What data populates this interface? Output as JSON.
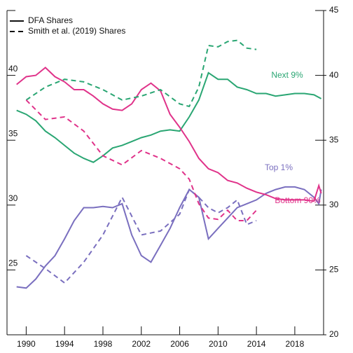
{
  "chart_data": {
    "type": "line",
    "legend": [
      {
        "label": "DFA Shares",
        "dash": "solid"
      },
      {
        "label": "Smith et al. (2019) Shares",
        "dash": "dashed"
      }
    ],
    "xlim": [
      1988,
      2021
    ],
    "xticks": [
      1990,
      1994,
      1998,
      2002,
      2006,
      2010,
      2014,
      2018
    ],
    "ylim": [
      20,
      45
    ],
    "yticks": [
      20,
      25,
      30,
      35,
      40,
      45
    ],
    "series": [
      {
        "name": "Next 9%",
        "color": "#2aa673",
        "dash": "solid",
        "x": [
          1989,
          1990,
          1991,
          1992,
          1993,
          1994,
          1995,
          1996,
          1997,
          1998,
          1999,
          2000,
          2001,
          2002,
          2003,
          2004,
          2005,
          2006,
          2007,
          2008,
          2009,
          2010,
          2011,
          2012,
          2013,
          2014,
          2015,
          2016,
          2017,
          2018,
          2019,
          2020,
          2020.75
        ],
        "values": [
          37.3,
          37.0,
          36.5,
          35.7,
          35.2,
          34.6,
          34.0,
          33.6,
          33.3,
          33.8,
          34.4,
          34.6,
          34.9,
          35.2,
          35.4,
          35.7,
          35.8,
          35.7,
          36.8,
          38.1,
          40.2,
          39.7,
          39.7,
          39.1,
          38.9,
          38.6,
          38.6,
          38.4,
          38.5,
          38.6,
          38.6,
          38.5,
          38.2
        ]
      },
      {
        "name": "Top 1%",
        "color": "#7a6fbf",
        "dash": "solid",
        "x": [
          1989,
          1990,
          1991,
          1992,
          1993,
          1994,
          1995,
          1996,
          1997,
          1998,
          1999,
          2000,
          2001,
          2002,
          2003,
          2004,
          2005,
          2006,
          2007,
          2008,
          2009,
          2010,
          2011,
          2012,
          2013,
          2014,
          2015,
          2016,
          2017,
          2018,
          2019,
          2020,
          2020.5,
          2020.75
        ],
        "values": [
          23.7,
          23.6,
          24.3,
          25.3,
          26.1,
          27.4,
          28.8,
          29.8,
          29.8,
          29.9,
          29.8,
          30.1,
          27.7,
          26.1,
          25.6,
          26.9,
          28.2,
          29.8,
          31.2,
          30.6,
          27.4,
          28.2,
          29.0,
          29.8,
          30.1,
          30.4,
          30.9,
          31.2,
          31.4,
          31.4,
          31.2,
          30.6,
          30.1,
          31.2
        ]
      },
      {
        "name": "Bottom 90%",
        "color": "#e0338a",
        "dash": "solid",
        "x": [
          1989,
          1990,
          1991,
          1992,
          1993,
          1994,
          1995,
          1996,
          1997,
          1998,
          1999,
          2000,
          2001,
          2002,
          2003,
          2004,
          2005,
          2006,
          2007,
          2008,
          2009,
          2010,
          2011,
          2012,
          2013,
          2014,
          2015,
          2016,
          2017,
          2018,
          2019,
          2020,
          2020.5,
          2020.75
        ],
        "values": [
          39.3,
          39.9,
          40.0,
          40.6,
          39.9,
          39.5,
          38.9,
          38.9,
          38.4,
          37.8,
          37.4,
          37.3,
          37.8,
          38.9,
          39.4,
          38.8,
          37.0,
          36.0,
          34.9,
          33.6,
          32.8,
          32.5,
          31.9,
          31.7,
          31.3,
          31.0,
          30.8,
          30.5,
          30.4,
          30.4,
          30.4,
          30.3,
          31.5,
          30.9
        ]
      },
      {
        "color": "#2aa673",
        "dash": "dashed",
        "x": [
          1990,
          1992,
          1994,
          1996,
          1998,
          2000,
          2002,
          2004,
          2006,
          2007,
          2008,
          2009,
          2010,
          2011,
          2012,
          2013,
          2014
        ],
        "values": [
          38.1,
          39.1,
          39.7,
          39.5,
          38.9,
          38.1,
          38.4,
          38.9,
          37.8,
          37.6,
          39.1,
          42.3,
          42.2,
          42.6,
          42.7,
          42.1,
          42.0
        ]
      },
      {
        "color": "#7a6fbf",
        "dash": "dashed",
        "x": [
          1990,
          1992,
          1994,
          1996,
          1998,
          2000,
          2002,
          2004,
          2006,
          2007,
          2008,
          2009,
          2010,
          2011,
          2012,
          2013,
          2014
        ],
        "values": [
          26.1,
          25.1,
          24.0,
          25.6,
          27.7,
          30.6,
          27.7,
          28.0,
          29.3,
          31.2,
          30.6,
          29.8,
          29.4,
          29.8,
          30.4,
          28.5,
          28.8
        ]
      },
      {
        "color": "#e0338a",
        "dash": "dashed",
        "x": [
          1990,
          1992,
          1994,
          1996,
          1998,
          2000,
          2002,
          2004,
          2006,
          2007,
          2008,
          2009,
          2010,
          2011,
          2012,
          2013,
          2014
        ],
        "values": [
          38.1,
          36.6,
          36.8,
          35.7,
          33.8,
          33.1,
          34.2,
          33.6,
          32.8,
          32.0,
          30.1,
          29.0,
          28.9,
          29.6,
          28.8,
          28.8,
          29.6
        ]
      }
    ]
  }
}
